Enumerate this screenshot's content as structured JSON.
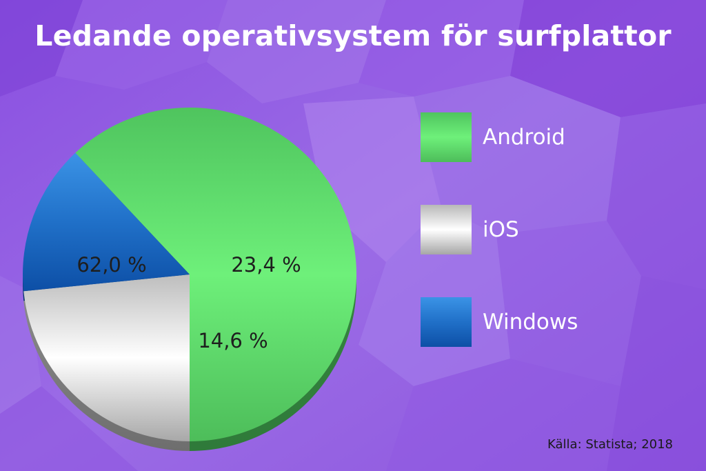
{
  "chart_data": {
    "type": "pie",
    "title": "Ledande operativsystem för surfplattor",
    "categories": [
      "Android",
      "iOS",
      "Windows"
    ],
    "values": [
      62.0,
      23.4,
      14.6
    ],
    "data_labels": [
      "62,0 %",
      "23,4 %",
      "14,6 %"
    ],
    "colors": [
      "#5fd86b",
      "#e4e4e4",
      "#2a78cf"
    ],
    "legend_position": "right",
    "source": "Källa: Statista; 2018"
  }
}
